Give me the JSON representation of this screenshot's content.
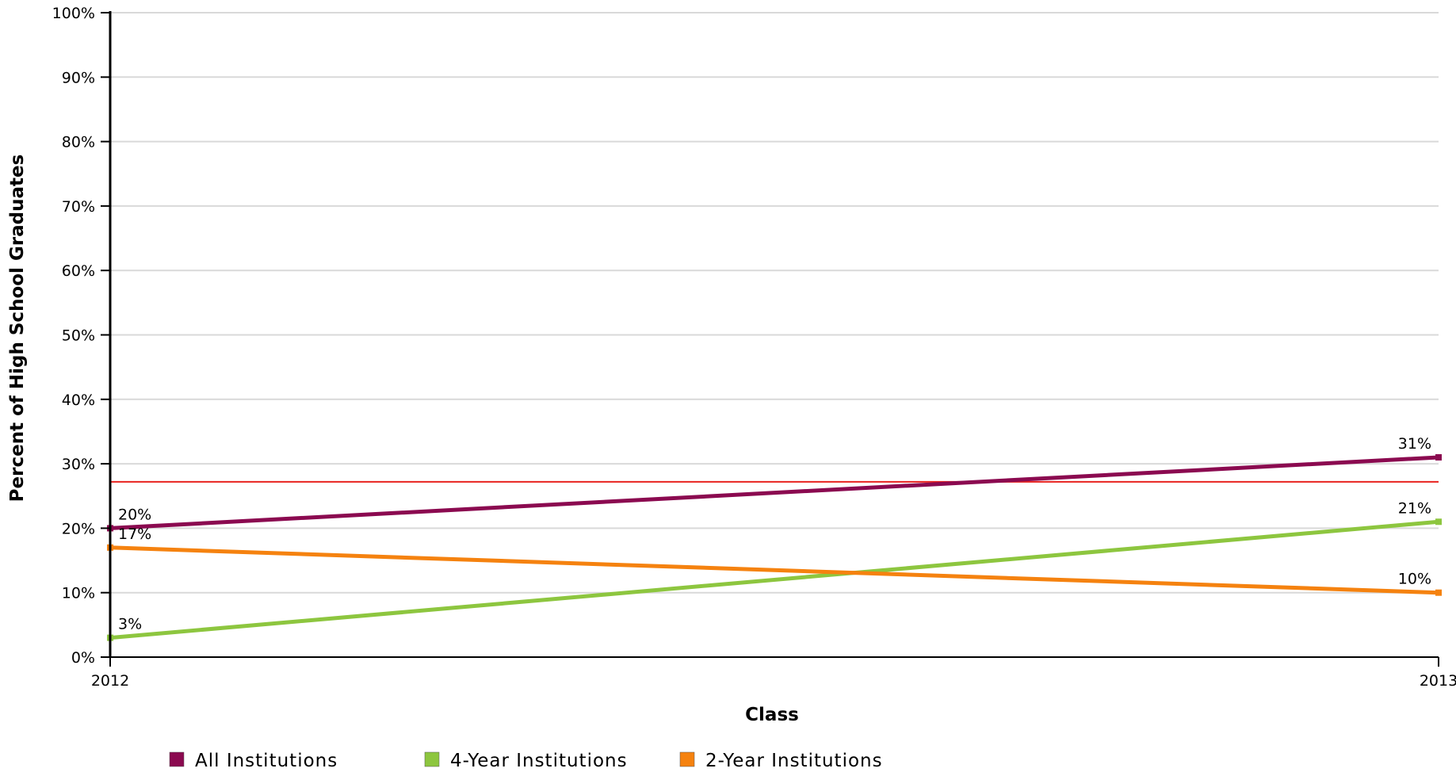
{
  "chart_data": {
    "type": "line",
    "x": [
      "2012",
      "2013"
    ],
    "xlabel": "Class",
    "ylabel": "Percent of High School Graduates",
    "ylim": [
      0,
      100
    ],
    "y_ticks": [
      0,
      10,
      20,
      30,
      40,
      50,
      60,
      70,
      80,
      90,
      100
    ],
    "y_tick_labels": [
      "0%",
      "10%",
      "20%",
      "30%",
      "40%",
      "50%",
      "60%",
      "70%",
      "80%",
      "90%",
      "100%"
    ],
    "grid": true,
    "legend_position": "bottom",
    "reference_line": {
      "value": 27.2,
      "color": "#e8221f"
    },
    "series": [
      {
        "name": "All Institutions",
        "color": "#8b0a50",
        "values": [
          20,
          31
        ],
        "labels": [
          "20%",
          "31%"
        ]
      },
      {
        "name": "4-Year Institutions",
        "color": "#8dc63f",
        "values": [
          3,
          21
        ],
        "labels": [
          "3%",
          "21%"
        ]
      },
      {
        "name": "2-Year Institutions",
        "color": "#f5820f",
        "values": [
          17,
          10
        ],
        "labels": [
          "17%",
          "10%"
        ]
      }
    ]
  }
}
